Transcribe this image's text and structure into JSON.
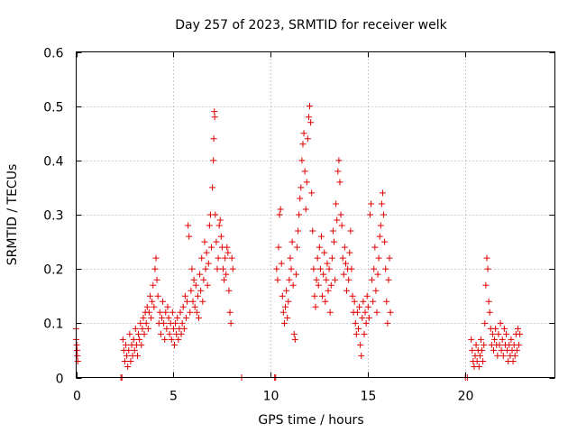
{
  "chart_data": {
    "type": "scatter",
    "title": "Day 257 of 2023, SRMTID for receiver welk",
    "xlabel": "GPS time / hours",
    "ylabel": "SRMTID / TECUs",
    "xlim": [
      0,
      24.6
    ],
    "ylim": [
      0,
      0.6
    ],
    "x_ticks": [
      0,
      5,
      10,
      15,
      20
    ],
    "x_tick_labels": [
      "0",
      "5",
      "10",
      "15",
      "20"
    ],
    "y_ticks": [
      0,
      0.1,
      0.2,
      0.3,
      0.4,
      0.5,
      0.6
    ],
    "y_tick_labels": [
      "0",
      "0.1",
      "0.2",
      "0.3",
      "0.4",
      "0.5",
      "0.6"
    ],
    "grid": true,
    "marker": "+",
    "color": "#e00000",
    "series": [
      {
        "name": "SRMTID",
        "points": [
          [
            0.0,
            0.09
          ],
          [
            0.0,
            0.07
          ],
          [
            0.03,
            0.06
          ],
          [
            0.05,
            0.05
          ],
          [
            0.06,
            0.04
          ],
          [
            0.08,
            0.03
          ],
          [
            2.3,
            0.0
          ],
          [
            2.35,
            0.0
          ],
          [
            2.4,
            0.07
          ],
          [
            2.45,
            0.05
          ],
          [
            2.5,
            0.03
          ],
          [
            2.55,
            0.06
          ],
          [
            2.6,
            0.04
          ],
          [
            2.65,
            0.02
          ],
          [
            2.7,
            0.05
          ],
          [
            2.75,
            0.08
          ],
          [
            2.8,
            0.03
          ],
          [
            2.85,
            0.06
          ],
          [
            2.9,
            0.04
          ],
          [
            2.95,
            0.07
          ],
          [
            3.0,
            0.05
          ],
          [
            3.05,
            0.09
          ],
          [
            3.1,
            0.06
          ],
          [
            3.15,
            0.04
          ],
          [
            3.2,
            0.08
          ],
          [
            3.25,
            0.07
          ],
          [
            3.3,
            0.1
          ],
          [
            3.35,
            0.06
          ],
          [
            3.4,
            0.09
          ],
          [
            3.45,
            0.11
          ],
          [
            3.5,
            0.08
          ],
          [
            3.55,
            0.12
          ],
          [
            3.6,
            0.1
          ],
          [
            3.65,
            0.13
          ],
          [
            3.7,
            0.09
          ],
          [
            3.75,
            0.12
          ],
          [
            3.8,
            0.15
          ],
          [
            3.85,
            0.11
          ],
          [
            3.9,
            0.14
          ],
          [
            3.95,
            0.17
          ],
          [
            4.0,
            0.13
          ],
          [
            4.05,
            0.2
          ],
          [
            4.1,
            0.22
          ],
          [
            4.15,
            0.18
          ],
          [
            4.2,
            0.15
          ],
          [
            4.25,
            0.1
          ],
          [
            4.3,
            0.12
          ],
          [
            4.35,
            0.08
          ],
          [
            4.4,
            0.11
          ],
          [
            4.45,
            0.14
          ],
          [
            4.5,
            0.1
          ],
          [
            4.55,
            0.07
          ],
          [
            4.6,
            0.12
          ],
          [
            4.65,
            0.09
          ],
          [
            4.7,
            0.13
          ],
          [
            4.75,
            0.11
          ],
          [
            4.8,
            0.08
          ],
          [
            4.85,
            0.1
          ],
          [
            4.9,
            0.07
          ],
          [
            4.95,
            0.12
          ],
          [
            5.0,
            0.09
          ],
          [
            5.05,
            0.06
          ],
          [
            5.1,
            0.1
          ],
          [
            5.15,
            0.08
          ],
          [
            5.2,
            0.11
          ],
          [
            5.25,
            0.07
          ],
          [
            5.3,
            0.09
          ],
          [
            5.35,
            0.12
          ],
          [
            5.4,
            0.08
          ],
          [
            5.45,
            0.1
          ],
          [
            5.5,
            0.13
          ],
          [
            5.55,
            0.09
          ],
          [
            5.6,
            0.15
          ],
          [
            5.65,
            0.11
          ],
          [
            5.7,
            0.14
          ],
          [
            5.75,
            0.28
          ],
          [
            5.8,
            0.26
          ],
          [
            5.85,
            0.12
          ],
          [
            5.9,
            0.16
          ],
          [
            5.95,
            0.2
          ],
          [
            6.0,
            0.14
          ],
          [
            6.05,
            0.18
          ],
          [
            6.1,
            0.13
          ],
          [
            6.15,
            0.17
          ],
          [
            6.2,
            0.12
          ],
          [
            6.25,
            0.15
          ],
          [
            6.3,
            0.11
          ],
          [
            6.35,
            0.19
          ],
          [
            6.4,
            0.16
          ],
          [
            6.45,
            0.22
          ],
          [
            6.5,
            0.14
          ],
          [
            6.55,
            0.18
          ],
          [
            6.6,
            0.25
          ],
          [
            6.65,
            0.2
          ],
          [
            6.7,
            0.23
          ],
          [
            6.75,
            0.17
          ],
          [
            6.8,
            0.21
          ],
          [
            6.85,
            0.28
          ],
          [
            6.9,
            0.3
          ],
          [
            6.95,
            0.24
          ],
          [
            7.0,
            0.35
          ],
          [
            7.05,
            0.4
          ],
          [
            7.07,
            0.44
          ],
          [
            7.1,
            0.49
          ],
          [
            7.12,
            0.48
          ],
          [
            7.15,
            0.3
          ],
          [
            7.2,
            0.25
          ],
          [
            7.25,
            0.2
          ],
          [
            7.3,
            0.22
          ],
          [
            7.35,
            0.28
          ],
          [
            7.4,
            0.29
          ],
          [
            7.45,
            0.26
          ],
          [
            7.5,
            0.24
          ],
          [
            7.55,
            0.2
          ],
          [
            7.6,
            0.18
          ],
          [
            7.65,
            0.22
          ],
          [
            7.7,
            0.19
          ],
          [
            7.75,
            0.24
          ],
          [
            7.8,
            0.23
          ],
          [
            7.85,
            0.16
          ],
          [
            7.9,
            0.12
          ],
          [
            7.95,
            0.1
          ],
          [
            8.0,
            0.22
          ],
          [
            8.05,
            0.2
          ],
          [
            8.5,
            0.0
          ],
          [
            10.2,
            0.0
          ],
          [
            10.25,
            0.0
          ],
          [
            10.3,
            0.2
          ],
          [
            10.35,
            0.18
          ],
          [
            10.4,
            0.24
          ],
          [
            10.45,
            0.3
          ],
          [
            10.5,
            0.31
          ],
          [
            10.55,
            0.21
          ],
          [
            10.6,
            0.15
          ],
          [
            10.65,
            0.12
          ],
          [
            10.7,
            0.1
          ],
          [
            10.75,
            0.13
          ],
          [
            10.8,
            0.16
          ],
          [
            10.85,
            0.11
          ],
          [
            10.9,
            0.14
          ],
          [
            10.95,
            0.18
          ],
          [
            11.0,
            0.22
          ],
          [
            11.05,
            0.2
          ],
          [
            11.1,
            0.25
          ],
          [
            11.15,
            0.17
          ],
          [
            11.2,
            0.08
          ],
          [
            11.25,
            0.07
          ],
          [
            11.3,
            0.19
          ],
          [
            11.35,
            0.24
          ],
          [
            11.4,
            0.27
          ],
          [
            11.45,
            0.3
          ],
          [
            11.5,
            0.33
          ],
          [
            11.55,
            0.35
          ],
          [
            11.6,
            0.4
          ],
          [
            11.65,
            0.43
          ],
          [
            11.7,
            0.45
          ],
          [
            11.75,
            0.38
          ],
          [
            11.8,
            0.31
          ],
          [
            11.85,
            0.36
          ],
          [
            11.9,
            0.44
          ],
          [
            11.95,
            0.48
          ],
          [
            12.0,
            0.5
          ],
          [
            12.05,
            0.47
          ],
          [
            12.1,
            0.34
          ],
          [
            12.15,
            0.27
          ],
          [
            12.2,
            0.2
          ],
          [
            12.25,
            0.15
          ],
          [
            12.3,
            0.13
          ],
          [
            12.35,
            0.18
          ],
          [
            12.4,
            0.22
          ],
          [
            12.45,
            0.17
          ],
          [
            12.5,
            0.24
          ],
          [
            12.55,
            0.2
          ],
          [
            12.6,
            0.26
          ],
          [
            12.65,
            0.15
          ],
          [
            12.7,
            0.19
          ],
          [
            12.75,
            0.23
          ],
          [
            12.8,
            0.14
          ],
          [
            12.85,
            0.18
          ],
          [
            12.9,
            0.21
          ],
          [
            12.95,
            0.16
          ],
          [
            13.0,
            0.2
          ],
          [
            13.05,
            0.12
          ],
          [
            13.1,
            0.17
          ],
          [
            13.15,
            0.22
          ],
          [
            13.2,
            0.27
          ],
          [
            13.25,
            0.25
          ],
          [
            13.3,
            0.18
          ],
          [
            13.35,
            0.32
          ],
          [
            13.4,
            0.29
          ],
          [
            13.45,
            0.38
          ],
          [
            13.5,
            0.4
          ],
          [
            13.55,
            0.36
          ],
          [
            13.6,
            0.3
          ],
          [
            13.65,
            0.28
          ],
          [
            13.7,
            0.22
          ],
          [
            13.75,
            0.19
          ],
          [
            13.8,
            0.24
          ],
          [
            13.85,
            0.21
          ],
          [
            13.9,
            0.16
          ],
          [
            13.95,
            0.2
          ],
          [
            14.0,
            0.18
          ],
          [
            14.05,
            0.23
          ],
          [
            14.1,
            0.27
          ],
          [
            14.15,
            0.2
          ],
          [
            14.2,
            0.15
          ],
          [
            14.25,
            0.12
          ],
          [
            14.3,
            0.14
          ],
          [
            14.35,
            0.1
          ],
          [
            14.4,
            0.08
          ],
          [
            14.45,
            0.12
          ],
          [
            14.5,
            0.09
          ],
          [
            14.55,
            0.13
          ],
          [
            14.6,
            0.06
          ],
          [
            14.65,
            0.04
          ],
          [
            14.7,
            0.11
          ],
          [
            14.75,
            0.14
          ],
          [
            14.8,
            0.08
          ],
          [
            14.85,
            0.12
          ],
          [
            14.9,
            0.1
          ],
          [
            14.95,
            0.15
          ],
          [
            15.0,
            0.13
          ],
          [
            15.05,
            0.11
          ],
          [
            15.1,
            0.3
          ],
          [
            15.15,
            0.32
          ],
          [
            15.2,
            0.18
          ],
          [
            15.25,
            0.14
          ],
          [
            15.3,
            0.2
          ],
          [
            15.35,
            0.24
          ],
          [
            15.4,
            0.16
          ],
          [
            15.45,
            0.12
          ],
          [
            15.5,
            0.19
          ],
          [
            15.55,
            0.22
          ],
          [
            15.6,
            0.26
          ],
          [
            15.65,
            0.28
          ],
          [
            15.7,
            0.32
          ],
          [
            15.75,
            0.34
          ],
          [
            15.8,
            0.3
          ],
          [
            15.85,
            0.25
          ],
          [
            15.9,
            0.2
          ],
          [
            15.95,
            0.14
          ],
          [
            16.0,
            0.1
          ],
          [
            16.05,
            0.18
          ],
          [
            16.1,
            0.22
          ],
          [
            16.15,
            0.12
          ],
          [
            20.0,
            0.0
          ],
          [
            20.1,
            0.0
          ],
          [
            20.3,
            0.07
          ],
          [
            20.35,
            0.05
          ],
          [
            20.4,
            0.03
          ],
          [
            20.45,
            0.02
          ],
          [
            20.5,
            0.04
          ],
          [
            20.55,
            0.06
          ],
          [
            20.6,
            0.03
          ],
          [
            20.65,
            0.05
          ],
          [
            20.7,
            0.02
          ],
          [
            20.75,
            0.04
          ],
          [
            20.8,
            0.07
          ],
          [
            20.85,
            0.05
          ],
          [
            20.9,
            0.03
          ],
          [
            20.95,
            0.06
          ],
          [
            21.0,
            0.1
          ],
          [
            21.05,
            0.17
          ],
          [
            21.1,
            0.22
          ],
          [
            21.15,
            0.2
          ],
          [
            21.2,
            0.14
          ],
          [
            21.25,
            0.12
          ],
          [
            21.3,
            0.09
          ],
          [
            21.35,
            0.06
          ],
          [
            21.4,
            0.08
          ],
          [
            21.45,
            0.05
          ],
          [
            21.5,
            0.07
          ],
          [
            21.55,
            0.09
          ],
          [
            21.6,
            0.06
          ],
          [
            21.65,
            0.04
          ],
          [
            21.7,
            0.08
          ],
          [
            21.75,
            0.06
          ],
          [
            21.8,
            0.1
          ],
          [
            21.85,
            0.05
          ],
          [
            21.9,
            0.07
          ],
          [
            21.95,
            0.04
          ],
          [
            22.0,
            0.09
          ],
          [
            22.05,
            0.06
          ],
          [
            22.1,
            0.08
          ],
          [
            22.15,
            0.05
          ],
          [
            22.2,
            0.03
          ],
          [
            22.25,
            0.06
          ],
          [
            22.3,
            0.04
          ],
          [
            22.35,
            0.07
          ],
          [
            22.4,
            0.05
          ],
          [
            22.45,
            0.03
          ],
          [
            22.5,
            0.06
          ],
          [
            22.55,
            0.04
          ],
          [
            22.6,
            0.08
          ],
          [
            22.65,
            0.05
          ],
          [
            22.7,
            0.09
          ],
          [
            22.75,
            0.06
          ],
          [
            22.8,
            0.08
          ]
        ]
      }
    ]
  }
}
